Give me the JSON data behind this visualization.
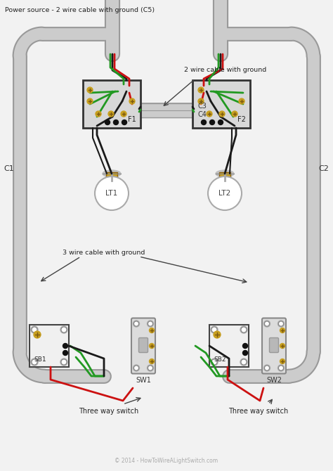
{
  "title": "Power source - 2 wire cable with ground (C5)",
  "bg_color": "#f2f2f2",
  "conduit_color": "#cccccc",
  "conduit_border": "#999999",
  "box_color": "#e0e0e0",
  "box_border": "#444444",
  "screw_color": "#c8a020",
  "junction_color": "#111111",
  "wire_black": "#1a1a1a",
  "wire_red": "#cc1111",
  "wire_green": "#229922",
  "wire_white": "#dddddd",
  "labels": {
    "title": "Power source - 2 wire cable with ground (C5)",
    "C1": "C1",
    "C2": "C2",
    "C3": "C3",
    "C4": "C4",
    "F1": "F1",
    "F2": "F2",
    "LT1": "LT1",
    "LT2": "LT2",
    "SB1": "SB1",
    "SB2": "SB2",
    "SW1": "SW1",
    "SW2": "SW2",
    "label_2wire": "2 wire cable with ground",
    "label_3wire": "3 wire cable with ground",
    "label_switch": "Three way switch",
    "copyright": "© 2014 - HowToWireALightSwitch.com"
  }
}
